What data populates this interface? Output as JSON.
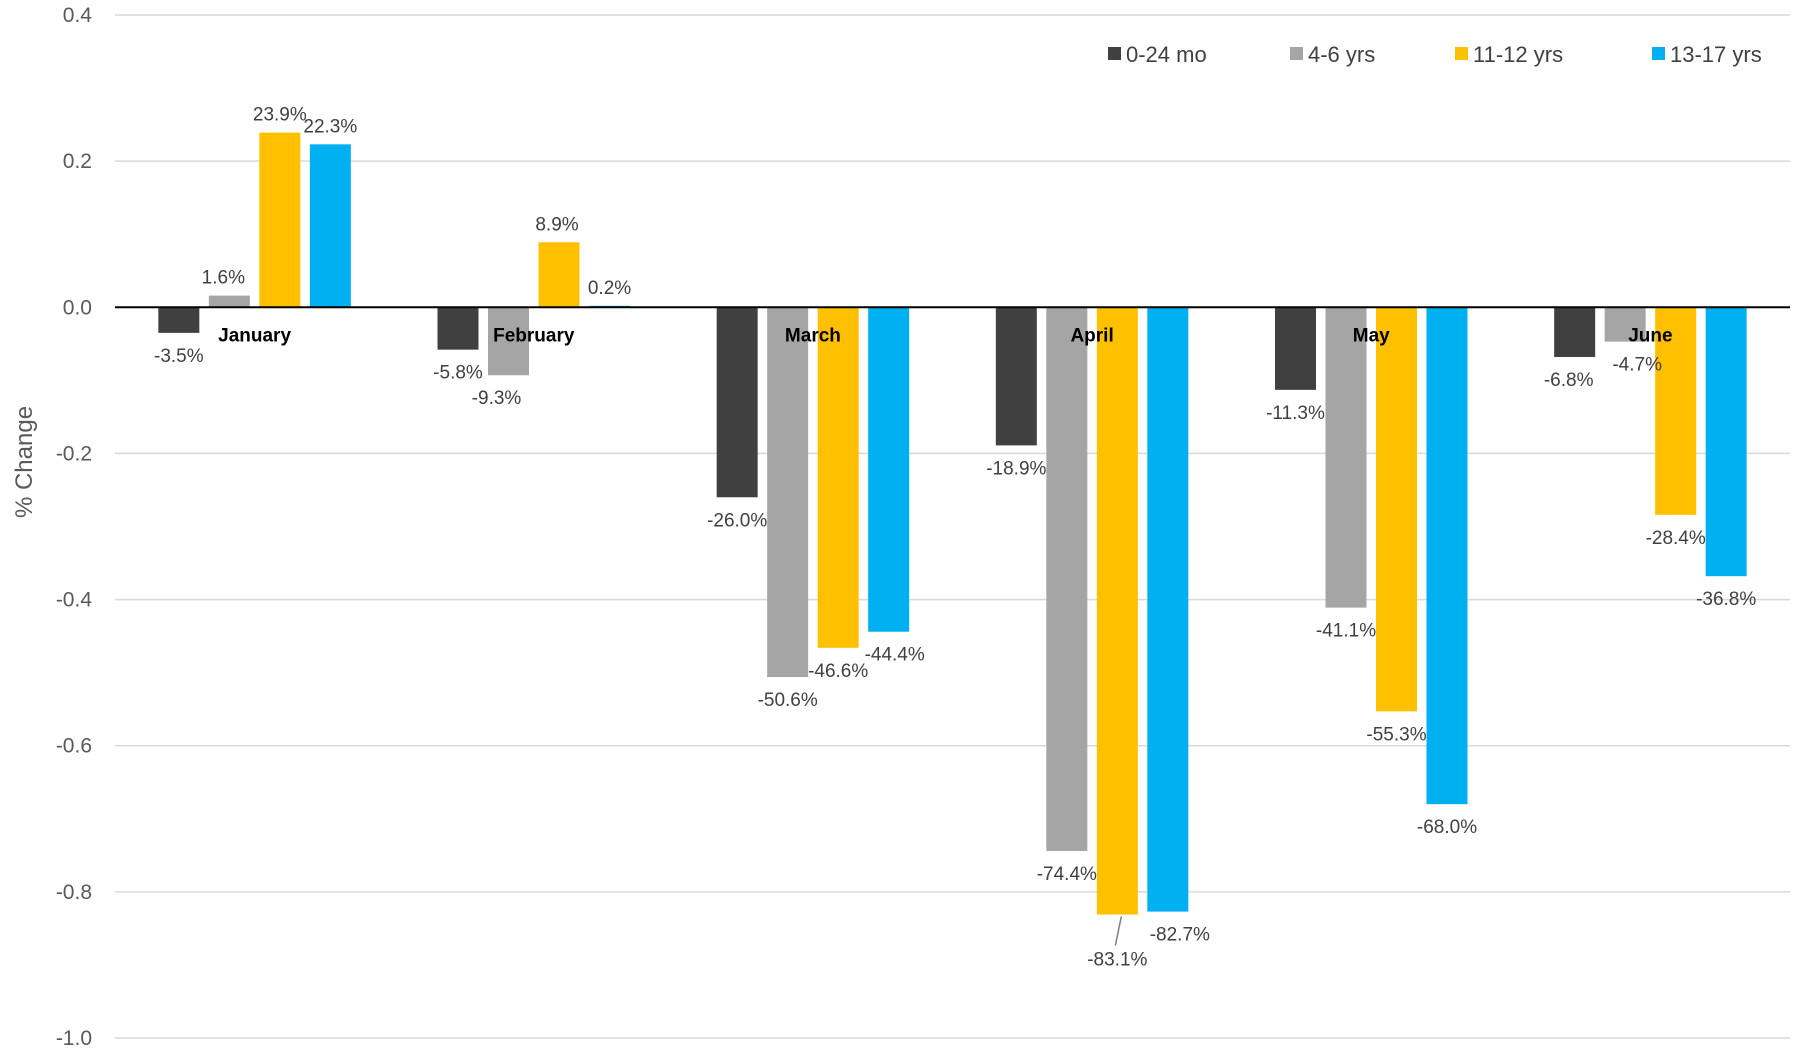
{
  "chart_data": {
    "type": "bar",
    "title": "",
    "xlabel": "",
    "ylabel": "% Change",
    "ylim": [
      -1.0,
      0.4
    ],
    "yticks": [
      "0.4",
      "0.2",
      "0.0",
      "-0.2",
      "-0.4",
      "-0.6",
      "-0.8",
      "-1.0"
    ],
    "ytick_values": [
      0.4,
      0.2,
      0.0,
      -0.2,
      -0.4,
      -0.6,
      -0.8,
      -1.0
    ],
    "grid": true,
    "legend_position": "top-right",
    "categories": [
      "January",
      "February",
      "March",
      "April",
      "May",
      "June"
    ],
    "series": [
      {
        "name": "0-24 mo",
        "color": "#404040",
        "values": [
          -0.035,
          -0.058,
          -0.26,
          -0.189,
          -0.113,
          -0.068
        ],
        "labels": [
          "-3.5%",
          "-5.8%",
          "-26.0%",
          "-18.9%",
          "-11.3%",
          "-6.8%"
        ]
      },
      {
        "name": "4-6 yrs",
        "color": "#a5a5a5",
        "values": [
          0.016,
          -0.093,
          -0.506,
          -0.744,
          -0.411,
          -0.047
        ],
        "labels": [
          "1.6%",
          "-9.3%",
          "-50.6%",
          "-74.4%",
          "-41.1%",
          "-4.7%"
        ]
      },
      {
        "name": "11-12 yrs",
        "color": "#ffc000",
        "values": [
          0.239,
          0.089,
          -0.466,
          -0.831,
          -0.553,
          -0.284
        ],
        "labels": [
          "23.9%",
          "8.9%",
          "-46.6%",
          "-83.1%",
          "-55.3%",
          "-28.4%"
        ]
      },
      {
        "name": "13-17 yrs",
        "color": "#00b0f0",
        "values": [
          0.223,
          0.002,
          -0.444,
          -0.827,
          -0.68,
          -0.368
        ],
        "labels": [
          "22.3%",
          "0.2%",
          "-44.4%",
          "-82.7%",
          "-68.0%",
          "-36.8%"
        ]
      }
    ]
  }
}
